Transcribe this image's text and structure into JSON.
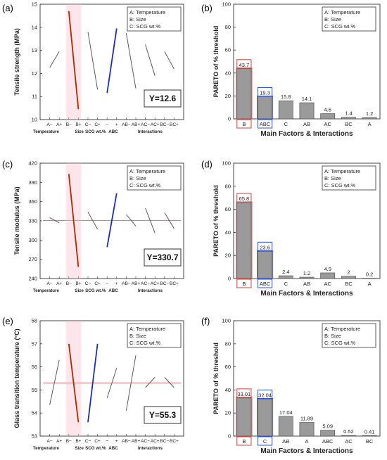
{
  "panel_labels": [
    "(a)",
    "(b)",
    "(c)",
    "(d)",
    "(e)",
    "(f)"
  ],
  "colors": {
    "axis": "#333333",
    "grid": "#d8d8d8",
    "line_gray": "#5a5a5a",
    "line_b": "#b02a00",
    "line_abc": "#1a2fc0",
    "mean_line": "#d07070",
    "bar_fill": "#9a9a9a",
    "bar_edge": "#444444",
    "highlight_b": "#d04040",
    "highlight_abc": "#3050d0",
    "highlight_glow": "#f6b8c8"
  },
  "chart_data": [
    {
      "id": "a",
      "type": "line",
      "ylabel": "Tensile strength (MPa)",
      "ylim": [
        10,
        15
      ],
      "yticks": [
        10,
        11,
        12,
        13,
        14,
        15
      ],
      "xticks": [
        "A−",
        "A+",
        "B−",
        "B+",
        "C−",
        "C+",
        "−",
        "+",
        "AB−",
        "AB+",
        "AC−",
        "AC+",
        "BC−",
        "BC+"
      ],
      "xgroups": [
        "Temperature",
        "Size",
        "SCG wt.%",
        "ABC",
        "Interactions"
      ],
      "legend": [
        "A: Temperature",
        "B: Size",
        "C: SCG wt.%"
      ],
      "annotation": "Y=12.6",
      "mean": null,
      "segments": [
        {
          "factor": "A",
          "values": [
            12.25,
            12.95
          ]
        },
        {
          "factor": "B",
          "values": [
            14.7,
            10.45
          ]
        },
        {
          "factor": "C",
          "values": [
            13.8,
            11.3
          ]
        },
        {
          "factor": "ABC",
          "values": [
            11.15,
            13.95
          ]
        },
        {
          "factor": "AB",
          "values": [
            13.75,
            11.35
          ]
        },
        {
          "factor": "AC",
          "values": [
            13.25,
            11.9
          ]
        },
        {
          "factor": "BC",
          "values": [
            12.95,
            12.2
          ]
        }
      ]
    },
    {
      "id": "b",
      "type": "bar",
      "xlabel": "Main Factors & Interactions",
      "ylabel": "PARETO of % threshold",
      "ylim": [
        0,
        100
      ],
      "yticks": [
        0,
        20,
        40,
        60,
        80,
        100
      ],
      "legend": [
        "A: Temperature",
        "B: Size",
        "C: SCG wt.%"
      ],
      "categories": [
        "B",
        "ABC",
        "C",
        "AB",
        "AC",
        "BC",
        "A"
      ],
      "values": [
        43.7,
        19.3,
        15.8,
        14.1,
        4.6,
        1.4,
        1.2
      ],
      "value_labels": [
        "43.7",
        "19.3",
        "15.8",
        "14.1",
        "4.6",
        "1.4",
        "1.2"
      ],
      "highlighted": [
        "B",
        "ABC"
      ]
    },
    {
      "id": "c",
      "type": "line",
      "ylabel": "Tensile modulus (MPa)",
      "ylim": [
        240,
        420
      ],
      "yticks": [
        240,
        270,
        300,
        330,
        360,
        390,
        420
      ],
      "xticks": [
        "A−",
        "A+",
        "B−",
        "B+",
        "C−",
        "C+",
        "−",
        "+",
        "AB−",
        "AB+",
        "AC−",
        "AC+",
        "BC−",
        "BC+"
      ],
      "xgroups": [
        "Temperature",
        "Size",
        "SCG wt.%",
        "ABC",
        "Interactions"
      ],
      "legend": [
        "A: Temperature",
        "B: Size",
        "C: SCG wt.%"
      ],
      "annotation": "Y=330.7",
      "mean": 330.7,
      "segments": [
        {
          "factor": "A",
          "values": [
            335,
            327
          ]
        },
        {
          "factor": "B",
          "values": [
            403,
            258
          ]
        },
        {
          "factor": "C",
          "values": [
            344,
            317
          ]
        },
        {
          "factor": "ABC",
          "values": [
            289,
            373
          ]
        },
        {
          "factor": "AB",
          "values": [
            340,
            322
          ]
        },
        {
          "factor": "AC",
          "values": [
            350,
            311
          ]
        },
        {
          "factor": "BC",
          "values": [
            343,
            318
          ]
        }
      ]
    },
    {
      "id": "d",
      "type": "bar",
      "xlabel": "Main Factors & Interactions",
      "ylabel": "PARETO of % threshold",
      "ylim": [
        0,
        100
      ],
      "yticks": [
        0,
        20,
        40,
        60,
        80,
        100
      ],
      "legend": [
        "A: Temperature",
        "B: Size",
        "C: SCG wt.%"
      ],
      "categories": [
        "B",
        "ABC",
        "C",
        "AB",
        "AC",
        "BC",
        "A"
      ],
      "values": [
        65.8,
        23.6,
        2.4,
        1.2,
        4.9,
        2,
        0.2
      ],
      "value_labels": [
        "65.8",
        "23.6",
        "2.4",
        "1.2",
        "4.9",
        "2",
        "0.2"
      ],
      "highlighted": [
        "B",
        "ABC"
      ]
    },
    {
      "id": "e",
      "type": "line",
      "ylabel": "Glass transition temperature (°C)",
      "ylim": [
        53,
        58
      ],
      "yticks": [
        53,
        54,
        55,
        56,
        57,
        58
      ],
      "xticks": [
        "A−",
        "A+",
        "B−",
        "B+",
        "C−",
        "C+",
        "−",
        "+",
        "AB−",
        "AB+",
        "AC−",
        "AC+",
        "BC−",
        "BC+"
      ],
      "xgroups": [
        "Temperature",
        "Size",
        "SCG wt.%",
        "ABC",
        "Interactions"
      ],
      "legend": [
        "A: Temperature",
        "B: Size",
        "C: SCG wt.%"
      ],
      "annotation": "Y=55.3",
      "mean": 55.3,
      "segments": [
        {
          "factor": "A",
          "values": [
            54.35,
            56.3
          ]
        },
        {
          "factor": "B",
          "values": [
            57.0,
            53.6
          ]
        },
        {
          "factor": "C",
          "values": [
            53.6,
            57.0
          ]
        },
        {
          "factor": "ABC",
          "values": [
            54.65,
            55.95
          ]
        },
        {
          "factor": "AB",
          "values": [
            54.1,
            56.5
          ]
        },
        {
          "factor": "AC",
          "values": [
            55.1,
            55.55
          ]
        },
        {
          "factor": "BC",
          "values": [
            55.55,
            55.1
          ]
        }
      ]
    },
    {
      "id": "f",
      "type": "bar",
      "xlabel": "Main Factors & Interactions",
      "ylabel": "PARETO of % threshold",
      "ylim": [
        0,
        100
      ],
      "yticks": [
        0,
        20,
        40,
        60,
        80,
        100
      ],
      "legend": [
        "A: Temperature",
        "B: Size",
        "C: SCG wt.%"
      ],
      "categories": [
        "B",
        "C",
        "AB",
        "A",
        "ABC",
        "AC",
        "BC"
      ],
      "values": [
        33.01,
        32.04,
        17.04,
        11.89,
        5.09,
        0.52,
        0.41
      ],
      "value_labels": [
        "33.01",
        "32.04",
        "17.04",
        "11.89",
        "5.09",
        "0.52",
        "0.41"
      ],
      "highlighted": [
        "B",
        "C"
      ]
    }
  ]
}
